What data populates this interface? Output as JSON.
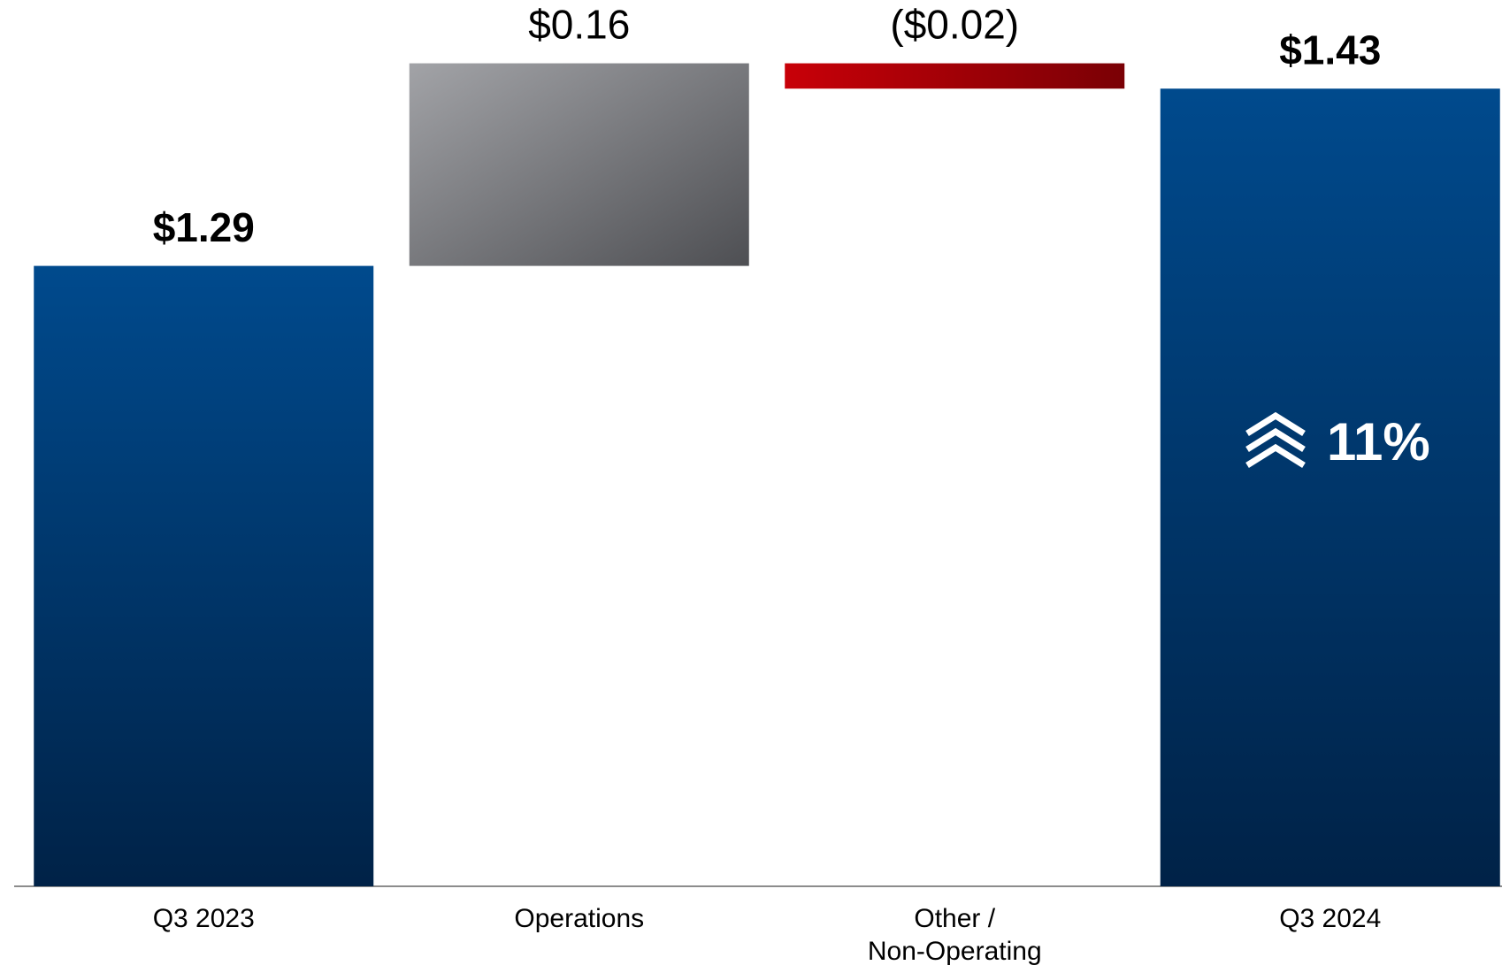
{
  "chart_data": {
    "type": "waterfall",
    "categories": [
      "Q3 2023",
      "Operations",
      "Other /\nNon-Operating",
      "Q3 2024"
    ],
    "values": [
      1.29,
      0.16,
      -0.02,
      1.43
    ],
    "value_labels": [
      "$1.29",
      "$0.16",
      "($0.02)",
      "$1.43"
    ],
    "is_total": [
      true,
      false,
      false,
      true
    ],
    "colors": [
      "#004a8d",
      "#8e8f93",
      "#c00000",
      "#004a8d"
    ],
    "ylim": [
      0.8,
      1.5
    ],
    "annotation": "11%"
  }
}
